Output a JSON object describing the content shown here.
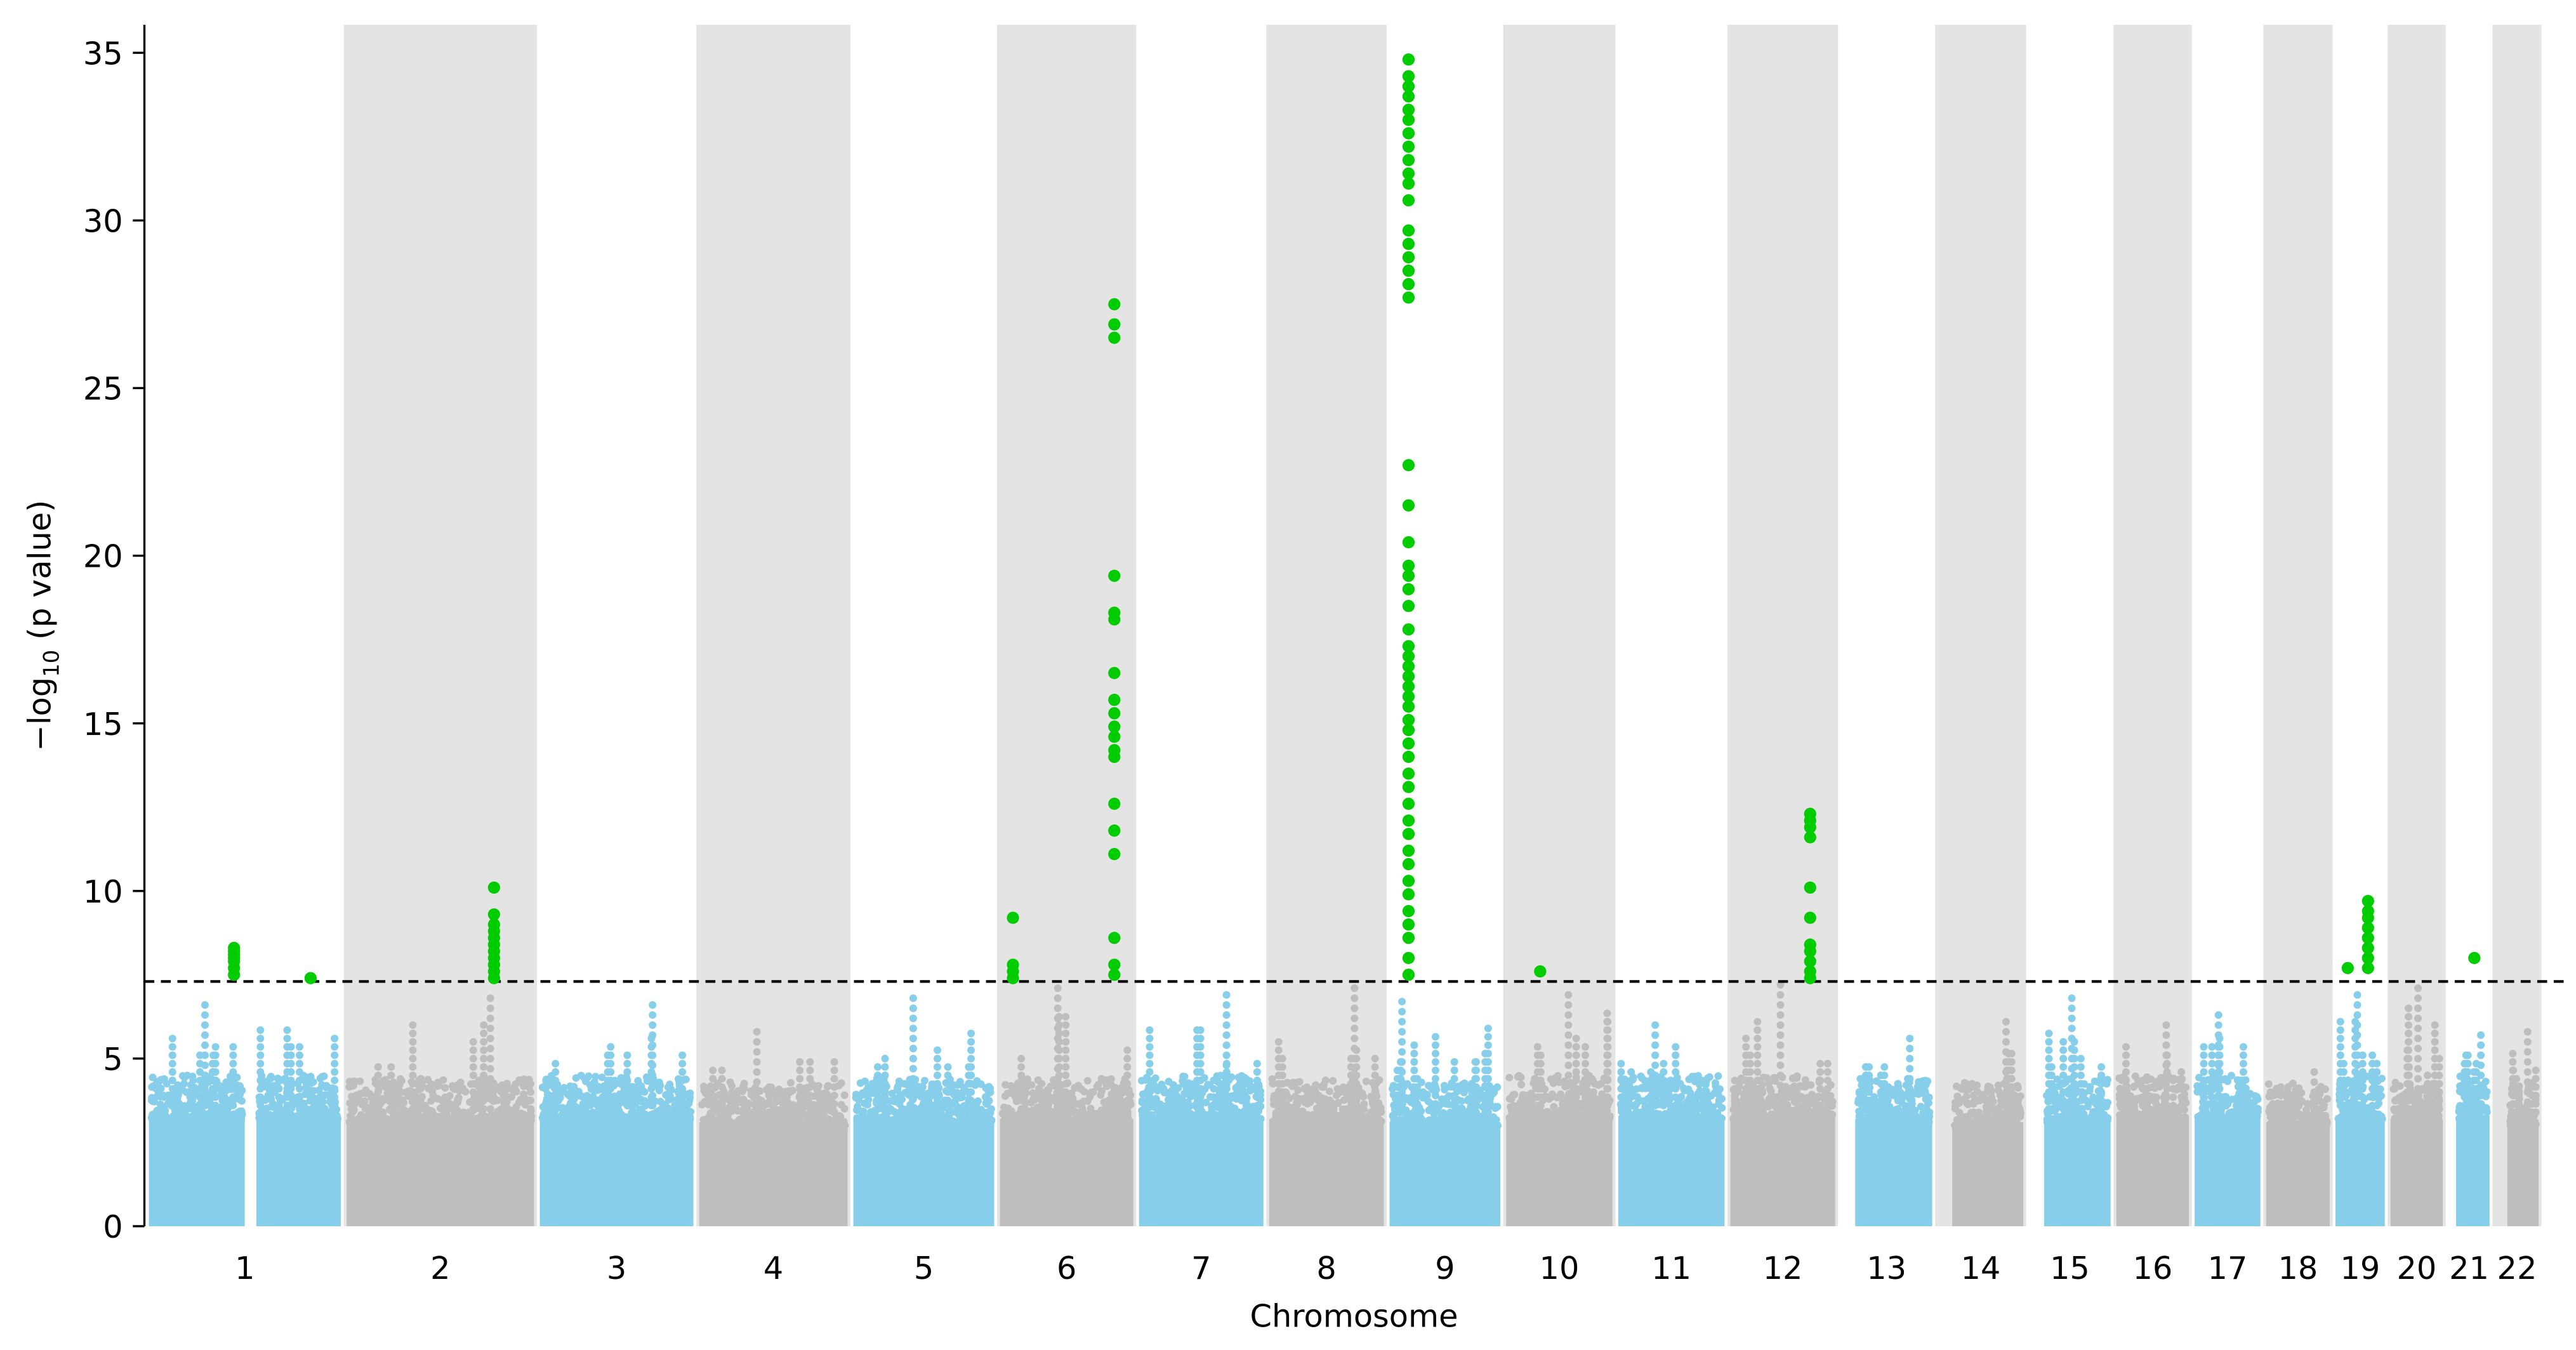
{
  "chart_data": {
    "type": "scatter",
    "subtype": "manhattan",
    "title": "",
    "xlabel": "Chromosome",
    "ylabel_main": "−log",
    "ylabel_sub": "10",
    "ylabel_rest": " (p value)",
    "ylim": [
      0,
      35.8
    ],
    "yticks": [
      "0",
      "5",
      "10",
      "15",
      "20",
      "25",
      "30",
      "35"
    ],
    "significance_threshold": 7.3,
    "grid": false,
    "legend": "none",
    "colors": {
      "odd_chromosome": "#87CEEB",
      "even_chromosome": "#BEBEBE",
      "significant": "#00CC00",
      "band": "#E4E4E4",
      "threshold_line": "#000000"
    },
    "chromosomes": [
      {
        "label": "1",
        "length_mb": 249,
        "bulk": 3.6,
        "max_bg": 6.6,
        "gaps": [
          [
            121,
            143
          ]
        ]
      },
      {
        "label": "2",
        "length_mb": 243,
        "bulk": 3.5,
        "max_bg": 7.0,
        "gaps": []
      },
      {
        "label": "3",
        "length_mb": 198,
        "bulk": 3.6,
        "max_bg": 6.6,
        "gaps": []
      },
      {
        "label": "4",
        "length_mb": 191,
        "bulk": 3.4,
        "max_bg": 5.8,
        "gaps": []
      },
      {
        "label": "5",
        "length_mb": 181,
        "bulk": 3.5,
        "max_bg": 6.8,
        "gaps": []
      },
      {
        "label": "6",
        "length_mb": 171,
        "bulk": 3.5,
        "max_bg": 7.2,
        "gaps": []
      },
      {
        "label": "7",
        "length_mb": 159,
        "bulk": 3.6,
        "max_bg": 6.9,
        "gaps": []
      },
      {
        "label": "8",
        "length_mb": 146,
        "bulk": 3.5,
        "max_bg": 7.2,
        "gaps": []
      },
      {
        "label": "9",
        "length_mb": 141,
        "bulk": 3.4,
        "max_bg": 6.7,
        "gaps": [
          [
            42,
            46
          ]
        ]
      },
      {
        "label": "10",
        "length_mb": 135,
        "bulk": 3.6,
        "max_bg": 7.1,
        "gaps": []
      },
      {
        "label": "11",
        "length_mb": 135,
        "bulk": 3.6,
        "max_bg": 6.1,
        "gaps": []
      },
      {
        "label": "12",
        "length_mb": 133,
        "bulk": 3.6,
        "max_bg": 7.2,
        "gaps": []
      },
      {
        "label": "13",
        "length_mb": 115,
        "bulk": 3.5,
        "max_bg": 5.6,
        "gaps": [
          [
            0,
            19
          ]
        ]
      },
      {
        "label": "14",
        "length_mb": 107,
        "bulk": 3.4,
        "max_bg": 6.2,
        "gaps": [
          [
            0,
            19
          ]
        ]
      },
      {
        "label": "15",
        "length_mb": 102,
        "bulk": 3.5,
        "max_bg": 7.0,
        "gaps": [
          [
            0,
            20
          ]
        ]
      },
      {
        "label": "16",
        "length_mb": 90,
        "bulk": 3.6,
        "max_bg": 6.2,
        "gaps": []
      },
      {
        "label": "17",
        "length_mb": 81,
        "bulk": 3.6,
        "max_bg": 6.4,
        "gaps": []
      },
      {
        "label": "18",
        "length_mb": 78,
        "bulk": 3.4,
        "max_bg": 4.7,
        "gaps": []
      },
      {
        "label": "19",
        "length_mb": 59,
        "bulk": 3.6,
        "max_bg": 7.0,
        "gaps": []
      },
      {
        "label": "20",
        "length_mb": 63,
        "bulk": 3.5,
        "max_bg": 7.2,
        "gaps": []
      },
      {
        "label": "21",
        "length_mb": 48,
        "bulk": 3.6,
        "max_bg": 5.9,
        "gaps": [
          [
            0,
            10
          ]
        ]
      },
      {
        "label": "22",
        "length_mb": 51,
        "bulk": 3.4,
        "max_bg": 5.9,
        "gaps": [
          [
            0,
            16
          ]
        ]
      }
    ],
    "significant_hits": [
      {
        "chromosome": "1",
        "position_mb": 110,
        "values": [
          7.5,
          7.7,
          7.9,
          8.0,
          8.1,
          8.2,
          8.3
        ]
      },
      {
        "chromosome": "1",
        "position_mb": 212,
        "values": [
          7.4
        ]
      },
      {
        "chromosome": "2",
        "position_mb": 193,
        "values": [
          7.4,
          7.6,
          7.8,
          8.0,
          8.2,
          8.4,
          8.6,
          8.8,
          9.0,
          9.3,
          10.1
        ]
      },
      {
        "chromosome": "6",
        "position_mb": 14,
        "values": [
          7.4,
          7.6,
          7.8,
          9.2
        ]
      },
      {
        "chromosome": "6",
        "position_mb": 149,
        "values": [
          27.5,
          26.9,
          26.5,
          19.4,
          18.3,
          18.1,
          16.5,
          15.7,
          15.3,
          14.9,
          14.6,
          14.2,
          14.0,
          12.6,
          11.8,
          11.1,
          8.6,
          7.8,
          7.5
        ]
      },
      {
        "chromosome": "9",
        "position_mb": 22,
        "values": [
          34.8,
          34.3,
          34.0,
          33.7,
          33.3,
          33.0,
          32.6,
          32.2,
          31.8,
          31.4,
          31.1,
          30.6,
          29.7,
          29.3,
          28.9,
          28.5,
          28.1,
          27.7,
          22.7,
          21.5,
          20.4,
          19.7,
          19.4,
          19.0,
          18.5,
          17.8,
          17.3,
          17.0,
          16.7,
          16.4,
          16.1,
          15.8,
          15.5,
          15.1,
          14.8,
          14.4,
          14.0,
          13.5,
          13.1,
          12.6,
          12.1,
          11.7,
          11.2,
          10.8,
          10.3,
          9.9,
          9.4,
          9.0,
          8.6,
          8.0,
          7.5
        ]
      },
      {
        "chromosome": "10",
        "position_mb": 42,
        "values": [
          7.6
        ]
      },
      {
        "chromosome": "12",
        "position_mb": 103,
        "values": [
          12.3,
          12.1,
          11.9,
          11.6,
          10.1,
          9.2,
          8.4,
          8.2,
          7.9,
          7.6,
          7.4
        ]
      },
      {
        "chromosome": "19",
        "position_mb": 13,
        "values": [
          7.7
        ]
      },
      {
        "chromosome": "19",
        "position_mb": 40,
        "values": [
          9.7,
          9.4,
          9.2,
          8.9,
          8.6,
          8.3,
          8.0,
          7.7
        ]
      },
      {
        "chromosome": "21",
        "position_mb": 31,
        "values": [
          8.0
        ]
      }
    ]
  }
}
